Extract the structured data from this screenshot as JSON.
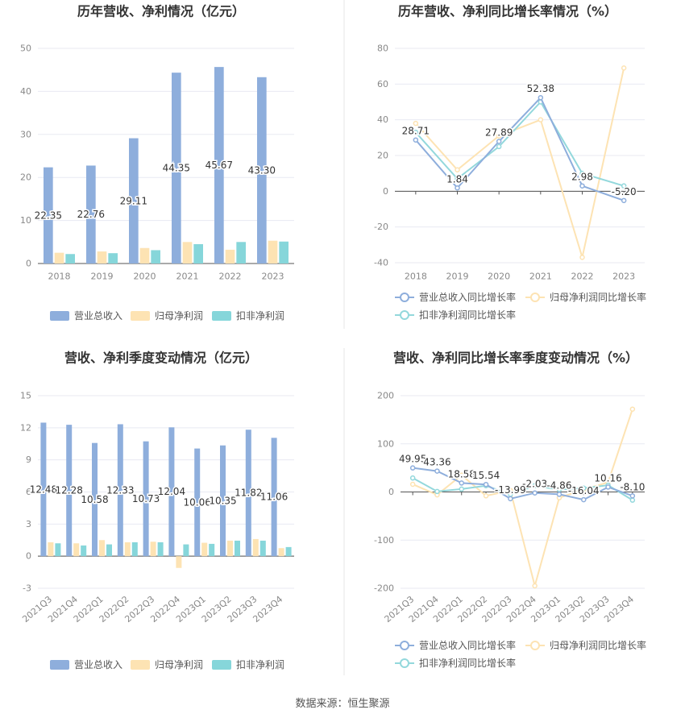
{
  "colors": {
    "revenue": "#8eaedc",
    "net_profit": "#fde3b3",
    "deducted_profit": "#86d6da",
    "revenue_line": "#8eaedc",
    "net_profit_line": "#fde3b3",
    "deducted_line": "#93d8dc",
    "title": "#333333",
    "axis_text": "#888888",
    "grid": "#e8eaf2",
    "divider": "#e5e5e5"
  },
  "footer": {
    "source": "数据来源：恒生聚源"
  },
  "chart_data": [
    {
      "id": "annual-bars",
      "type": "bar",
      "title": "历年营收、净利情况（亿元）",
      "categories": [
        "2018",
        "2019",
        "2020",
        "2021",
        "2022",
        "2023"
      ],
      "ylim": [
        0,
        50
      ],
      "yticks": [
        0,
        10,
        20,
        30,
        40,
        50
      ],
      "grid": true,
      "legend_position": "bottom",
      "series": [
        {
          "name": "营业总收入",
          "color_key": "revenue",
          "values": [
            22.35,
            22.76,
            29.11,
            44.35,
            45.67,
            43.3
          ],
          "labels": [
            "22.35",
            "22.76",
            "29.11",
            "44.35",
            "45.67",
            "43.30"
          ]
        },
        {
          "name": "归母净利润",
          "color_key": "net_profit",
          "values": [
            2.5,
            2.8,
            3.6,
            5.0,
            3.2,
            5.3
          ]
        },
        {
          "name": "扣非净利润",
          "color_key": "deducted_profit",
          "values": [
            2.2,
            2.4,
            3.1,
            4.5,
            5.0,
            5.1
          ]
        }
      ]
    },
    {
      "id": "annual-growth",
      "type": "line",
      "title": "历年营收、净利同比增长率情况（%）",
      "categories": [
        "2018",
        "2019",
        "2020",
        "2021",
        "2022",
        "2023"
      ],
      "ylim": [
        -40,
        80
      ],
      "yticks": [
        -40,
        -20,
        0,
        20,
        40,
        60,
        80
      ],
      "grid": true,
      "legend_position": "bottom",
      "series": [
        {
          "name": "营业总收入同比增长率",
          "color_key": "revenue_line",
          "values": [
            28.71,
            1.84,
            27.89,
            52.38,
            2.98,
            -5.2
          ],
          "labels": [
            "28.71",
            "1.84",
            "27.89",
            "52.38",
            "2.98",
            "-5.20"
          ]
        },
        {
          "name": "归母净利润同比增长率",
          "color_key": "net_profit_line",
          "values": [
            38,
            12,
            31,
            40,
            -37,
            69
          ]
        },
        {
          "name": "扣非净利润同比增长率",
          "color_key": "deducted_line",
          "values": [
            33,
            7,
            25,
            50,
            10,
            3
          ]
        }
      ]
    },
    {
      "id": "quarterly-bars",
      "type": "bar",
      "title": "营收、净利季度变动情况（亿元）",
      "categories": [
        "2021Q3",
        "2021Q4",
        "2022Q1",
        "2022Q2",
        "2022Q3",
        "2022Q4",
        "2023Q1",
        "2023Q2",
        "2023Q3",
        "2023Q4"
      ],
      "ylim": [
        -3,
        15
      ],
      "yticks": [
        -3,
        0,
        3,
        6,
        9,
        12,
        15
      ],
      "grid": true,
      "legend_position": "bottom",
      "series": [
        {
          "name": "营业总收入",
          "color_key": "revenue",
          "values": [
            12.48,
            12.28,
            10.58,
            12.33,
            10.73,
            12.04,
            10.06,
            10.35,
            11.82,
            11.06
          ],
          "labels": [
            "12.48",
            "12.28",
            "10.58",
            "12.33",
            "10.73",
            "12.04",
            "10.06",
            "10.35",
            "11.82",
            "11.06"
          ]
        },
        {
          "name": "归母净利润",
          "color_key": "net_profit",
          "values": [
            1.3,
            1.2,
            1.5,
            1.3,
            1.35,
            -1.1,
            1.25,
            1.45,
            1.6,
            0.75
          ]
        },
        {
          "name": "扣非净利润",
          "color_key": "deducted_profit",
          "values": [
            1.2,
            1.0,
            1.1,
            1.3,
            1.3,
            1.1,
            1.15,
            1.45,
            1.45,
            0.85
          ]
        }
      ]
    },
    {
      "id": "quarterly-growth",
      "type": "line",
      "title": "营收、净利同比增长率季度变动情况（%）",
      "categories": [
        "2021Q3",
        "2021Q4",
        "2022Q1",
        "2022Q2",
        "2022Q3",
        "2022Q4",
        "2023Q1",
        "2023Q2",
        "2023Q3",
        "2023Q4"
      ],
      "ylim": [
        -200,
        200
      ],
      "yticks": [
        -200,
        -100,
        0,
        100,
        200
      ],
      "grid": true,
      "legend_position": "bottom",
      "series": [
        {
          "name": "营业总收入同比增长率",
          "color_key": "revenue_line",
          "values": [
            49.95,
            43.36,
            18.58,
            15.54,
            -13.99,
            -2.03,
            -4.86,
            -16.04,
            10.16,
            -8.1
          ],
          "labels": [
            "49.95",
            "43.36",
            "18.58",
            "15.54",
            "-13.99",
            "-2.03",
            "-4.86",
            "-16.04",
            "10.16",
            "-8.10"
          ]
        },
        {
          "name": "归母净利润同比增长率",
          "color_key": "net_profit_line",
          "values": [
            16,
            -6,
            35,
            -8,
            3,
            -195,
            -12,
            5,
            20,
            172
          ]
        },
        {
          "name": "扣非净利润同比增长率",
          "color_key": "deducted_line",
          "values": [
            29,
            1,
            6,
            13,
            -5,
            13,
            5,
            8,
            14,
            -17
          ]
        }
      ]
    }
  ]
}
